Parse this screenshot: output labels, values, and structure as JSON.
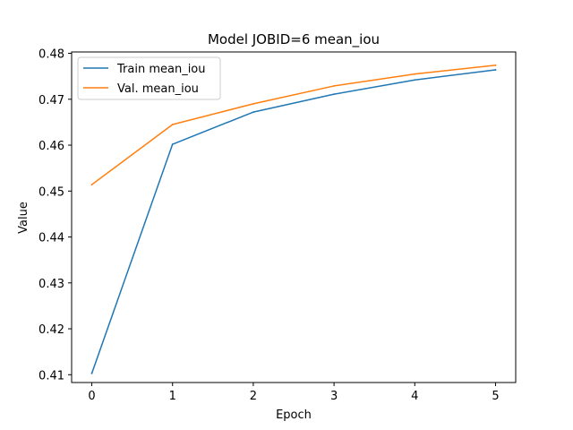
{
  "chart_data": {
    "type": "line",
    "title": "Model JOBID=6 mean_iou",
    "xlabel": "Epoch",
    "ylabel": "Value",
    "x": [
      0,
      1,
      2,
      3,
      4,
      5
    ],
    "xticks": [
      "0",
      "1",
      "2",
      "3",
      "4",
      "5"
    ],
    "yticks": [
      "0.41",
      "0.42",
      "0.43",
      "0.44",
      "0.45",
      "0.46",
      "0.47",
      "0.48"
    ],
    "ytick_values": [
      0.41,
      0.42,
      0.43,
      0.44,
      0.45,
      0.46,
      0.47,
      0.48
    ],
    "xlim": [
      -0.25,
      5.25
    ],
    "ylim": [
      0.4083,
      0.4803
    ],
    "grid": false,
    "legend_position": "top-left",
    "series": [
      {
        "name": "Train mean_iou",
        "color": "#1f77b4",
        "values": [
          0.4103,
          0.4602,
          0.4672,
          0.4711,
          0.4742,
          0.4764
        ]
      },
      {
        "name": "Val. mean_iou",
        "color": "#ff7f0e",
        "values": [
          0.4514,
          0.4645,
          0.469,
          0.4729,
          0.4755,
          0.4774
        ]
      }
    ]
  }
}
